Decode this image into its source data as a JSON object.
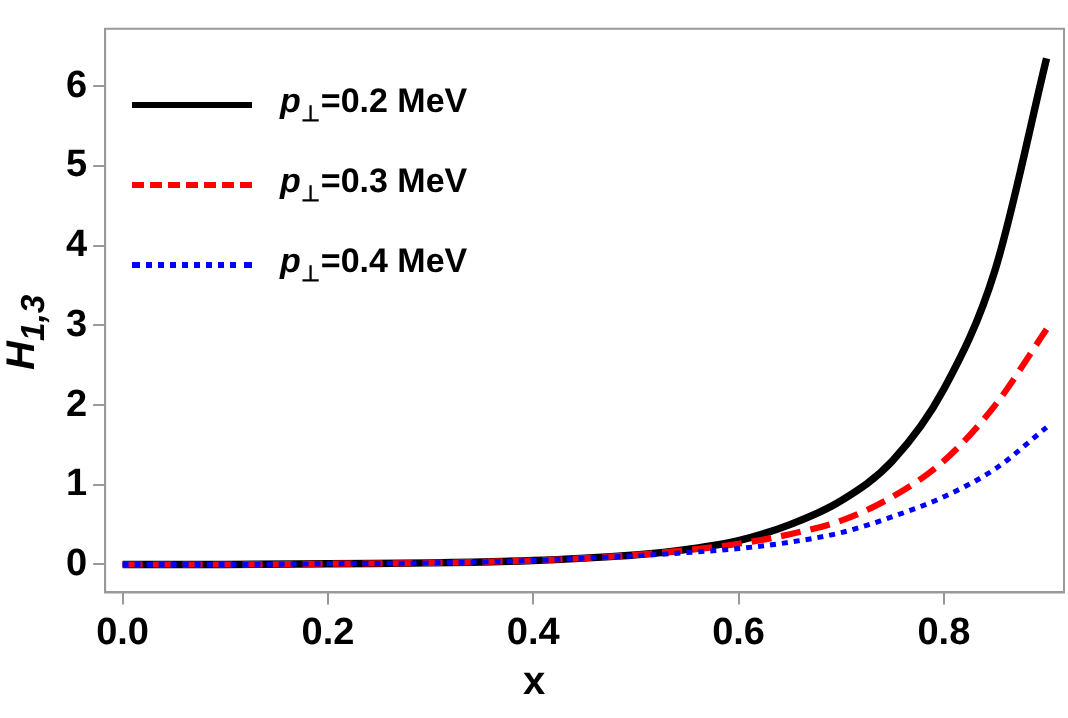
{
  "chart_data": {
    "type": "line",
    "xlabel": "x",
    "ylabel": "H$_{1,3}$",
    "xlim": [
      -0.017,
      0.917
    ],
    "ylim": [
      -0.35,
      6.72
    ],
    "xticks": [
      {
        "value": 0,
        "label": "0.0"
      },
      0.2,
      0.4,
      0.6,
      0.8
    ],
    "yticks": [
      0,
      1,
      2,
      3,
      4,
      5,
      6
    ],
    "grid": false,
    "legend": "top left",
    "marker": "none",
    "x": [
      0,
      0.1,
      0.2,
      0.3,
      0.4,
      0.45,
      0.5,
      0.55,
      0.6,
      0.65,
      0.7,
      0.75,
      0.8,
      0.85,
      0.9
    ],
    "series": [
      {
        "name": "p$_{⊥}$=0.2 MeV",
        "color": "#000000",
        "line_style": "solid",
        "values": [
          0,
          0,
          0.01,
          0.02,
          0.05,
          0.08,
          0.12,
          0.19,
          0.3,
          0.5,
          0.8,
          1.3,
          2.2,
          3.7,
          6.35
        ]
      },
      {
        "name": "p$_{⊥}$=0.3 MeV",
        "color": "#ff0000",
        "line_style": "dashed",
        "values": [
          0,
          0,
          0.01,
          0.02,
          0.05,
          0.08,
          0.12,
          0.18,
          0.26,
          0.38,
          0.55,
          0.85,
          1.3,
          2.0,
          2.95
        ]
      },
      {
        "name": "p$_{⊥}$=0.4 MeV",
        "color": "#0000ff",
        "line_style": "dotted",
        "values": [
          0,
          0,
          0.01,
          0.02,
          0.05,
          0.08,
          0.11,
          0.15,
          0.2,
          0.28,
          0.4,
          0.6,
          0.85,
          1.2,
          1.72
        ]
      }
    ]
  }
}
